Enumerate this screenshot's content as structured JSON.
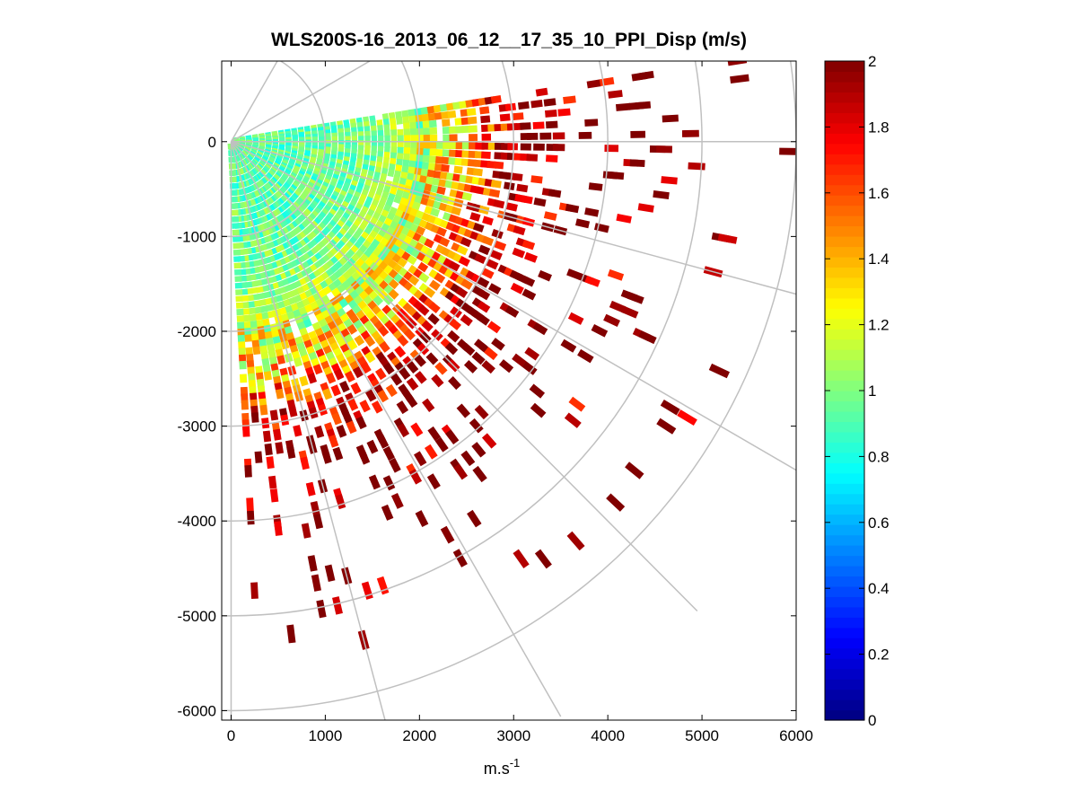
{
  "chart_data": {
    "type": "heatmap",
    "subtype": "polar-ppi-scan",
    "title": "WLS200S-16_2013_06_12__17_35_10_PPI_Disp (m/s)",
    "xlabel": {
      "text": "m.s",
      "sup": "-1"
    },
    "ylabel": "",
    "xlim": [
      -100,
      6000
    ],
    "ylim": [
      -6100,
      850
    ],
    "xticks": [
      0,
      1000,
      2000,
      3000,
      4000,
      5000,
      6000
    ],
    "yticks": [
      0,
      -1000,
      -2000,
      -3000,
      -4000,
      -5000,
      -6000
    ],
    "xtick_labels": [
      "0",
      "1000",
      "2000",
      "3000",
      "4000",
      "5000",
      "6000"
    ],
    "ytick_labels": [
      "0",
      "-1000",
      "-2000",
      "-3000",
      "-4000",
      "-5000",
      "-6000"
    ],
    "colorbar": {
      "colormap": "jet",
      "clim": [
        0,
        2
      ],
      "ticks": [
        0,
        0.2,
        0.4,
        0.6,
        0.8,
        1,
        1.2,
        1.4,
        1.6,
        1.8,
        2
      ],
      "tick_labels": [
        "0",
        "0.2",
        "0.4",
        "0.6",
        "0.8",
        "1",
        "1.2",
        "1.4",
        "1.6",
        "1.8",
        "2"
      ]
    },
    "polar_grid": {
      "color": "#c0c0c0",
      "ring_radii_m": [
        1000,
        2000,
        3000,
        4000,
        5000,
        6000
      ],
      "spoke_angles_deg": [
        0,
        -30,
        -60,
        -90,
        30,
        60,
        -15,
        -45,
        -75
      ]
    },
    "scan_sector": {
      "azimuth_from_deg": 10,
      "azimuth_to_deg": -88,
      "range_from_m": 0,
      "range_to_m": 6000
    },
    "range_profile": {
      "range_m": [
        0,
        500,
        1000,
        1500,
        2000,
        2500,
        3000,
        3500,
        4000,
        4500,
        5000,
        5500,
        6000
      ],
      "typical_value": [
        0.95,
        0.93,
        0.95,
        1.0,
        1.15,
        1.4,
        1.9,
        2.0,
        2.0,
        2.0,
        2.0,
        2.0,
        2.0
      ],
      "coverage_fraction": [
        1.0,
        1.0,
        1.0,
        1.0,
        0.95,
        0.82,
        0.55,
        0.3,
        0.18,
        0.1,
        0.05,
        0.03,
        0.02
      ]
    },
    "grid": false,
    "legend": "none"
  }
}
